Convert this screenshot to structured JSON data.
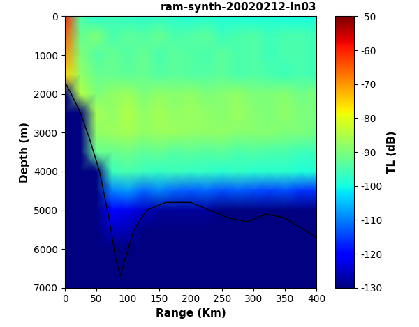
{
  "chart_data": {
    "type": "heatmap",
    "title": "ram-synth-20020212-ln03",
    "x_label": "Range (Km)",
    "y_label": "Depth (m)",
    "colorbar_label": "TL (dB)",
    "x": [
      0,
      25,
      50,
      75,
      100,
      125,
      150,
      175,
      200,
      225,
      250,
      275,
      300,
      325,
      350,
      375,
      400
    ],
    "y": [
      0,
      500,
      1000,
      1500,
      2000,
      2500,
      3000,
      3500,
      4000,
      4500,
      5000,
      5500,
      6000,
      6500,
      7000
    ],
    "cells": [
      [
        -60,
        -95,
        -98,
        -96,
        -97,
        -98,
        -97,
        -98,
        -99,
        -98,
        -99,
        -99,
        -100,
        -99,
        -100,
        -100,
        -100
      ],
      [
        -65,
        -92,
        -90,
        -95,
        -93,
        -94,
        -92,
        -95,
        -94,
        -93,
        -96,
        -95,
        -94,
        -96,
        -95,
        -95,
        -96
      ],
      [
        -70,
        -90,
        -94,
        -92,
        -94,
        -92,
        -95,
        -93,
        -94,
        -95,
        -93,
        -95,
        -94,
        -96,
        -95,
        -95,
        -96
      ],
      [
        -75,
        -88,
        -92,
        -92,
        -93,
        -92,
        -94,
        -93,
        -94,
        -94,
        -93,
        -95,
        -94,
        -95,
        -96,
        -95,
        -96
      ],
      [
        -130,
        -85,
        -90,
        -88,
        -87,
        -90,
        -88,
        -89,
        -88,
        -90,
        -89,
        -88,
        -90,
        -90,
        -89,
        -91,
        -90
      ],
      [
        -130,
        -130,
        -86,
        -88,
        -85,
        -88,
        -86,
        -88,
        -87,
        -88,
        -89,
        -87,
        -89,
        -90,
        -88,
        -90,
        -90
      ],
      [
        -130,
        -130,
        -88,
        -87,
        -86,
        -88,
        -87,
        -87,
        -88,
        -88,
        -88,
        -89,
        -89,
        -89,
        -90,
        -90,
        -91
      ],
      [
        -130,
        -130,
        -92,
        -92,
        -91,
        -93,
        -92,
        -94,
        -93,
        -94,
        -93,
        -95,
        -94,
        -95,
        -95,
        -96,
        -96
      ],
      [
        -130,
        -130,
        -130,
        -96,
        -95,
        -96,
        -97,
        -96,
        -97,
        -97,
        -98,
        -97,
        -98,
        -98,
        -98,
        -99,
        -99
      ],
      [
        -130,
        -130,
        -130,
        -110,
        -108,
        -112,
        -110,
        -112,
        -113,
        -112,
        -114,
        -113,
        -114,
        -115,
        -114,
        -116,
        -116
      ],
      [
        -130,
        -130,
        -130,
        -120,
        -122,
        -125,
        -128,
        -128,
        -128,
        -128,
        -130,
        -130,
        -130,
        -130,
        -130,
        -130,
        -130
      ],
      [
        -130,
        -130,
        -130,
        -125,
        -126,
        -130,
        -130,
        -130,
        -130,
        -130,
        -130,
        -130,
        -130,
        -130,
        -130,
        -130,
        -130
      ],
      [
        -130,
        -130,
        -130,
        -130,
        -130,
        -130,
        -130,
        -130,
        -130,
        -130,
        -130,
        -130,
        -130,
        -130,
        -130,
        -130,
        -130
      ],
      [
        -130,
        -130,
        -130,
        -130,
        -130,
        -130,
        -130,
        -130,
        -130,
        -130,
        -130,
        -130,
        -130,
        -130,
        -130,
        -130,
        -130
      ],
      [
        -130,
        -130,
        -130,
        -130,
        -130,
        -130,
        -130,
        -130,
        -130,
        -130,
        -130,
        -130,
        -130,
        -130,
        -130,
        -130,
        -130
      ]
    ],
    "color_range": [
      -130,
      -50
    ],
    "color_ticks": [
      -50,
      -60,
      -70,
      -80,
      -90,
      -100,
      -110,
      -120,
      -130
    ],
    "series": [
      {
        "type": "line",
        "color": "#000000",
        "x": [
          0,
          10,
          25,
          40,
          55,
          70,
          80,
          88,
          95,
          110,
          130,
          160,
          200,
          230,
          260,
          290,
          320,
          350,
          380,
          400
        ],
        "values": [
          1700,
          2000,
          2500,
          3200,
          4000,
          5200,
          6200,
          6700,
          6300,
          5500,
          5000,
          4800,
          4800,
          5000,
          5200,
          5300,
          5100,
          5200,
          5500,
          5700
        ]
      }
    ],
    "xlim": [
      0,
      400
    ],
    "ylim": [
      7000,
      0
    ],
    "xticks": [
      0,
      50,
      100,
      150,
      200,
      250,
      300,
      350,
      400
    ],
    "yticks": [
      0,
      1000,
      2000,
      3000,
      4000,
      5000,
      6000,
      7000
    ],
    "grid": false
  }
}
